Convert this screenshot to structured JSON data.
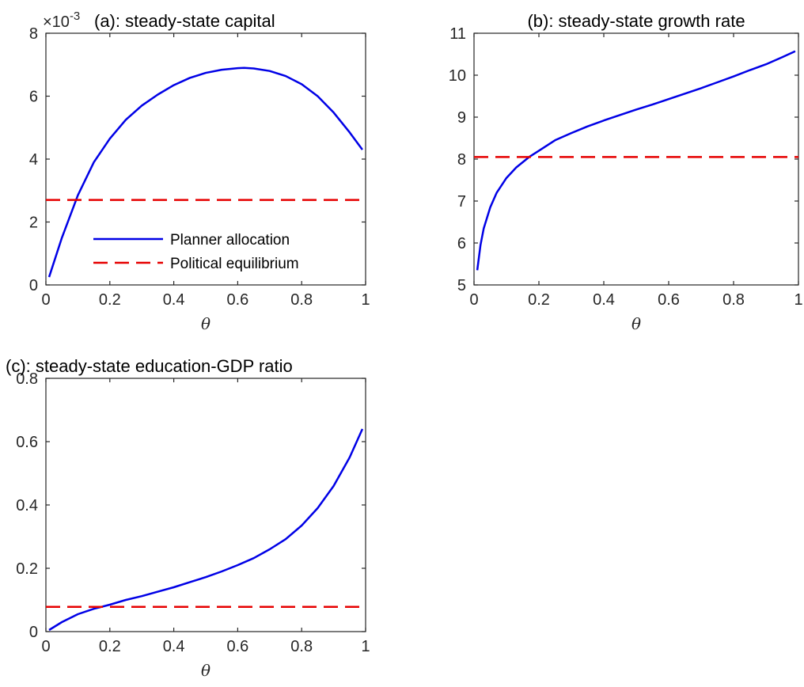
{
  "colors": {
    "planner": "#0000e6",
    "political": "#e60000",
    "axes": "#262626"
  },
  "legend": {
    "position": "bottom-right",
    "planner_label": "Planner allocation",
    "political_label": "Political equilibrium"
  },
  "chart_data": [
    {
      "type": "line",
      "title": "(a): steady-state capital",
      "xlabel": "θ",
      "ylabel": "",
      "xlim": [
        0,
        1
      ],
      "ylim": [
        0,
        8
      ],
      "xticks": [
        "0",
        "0.2",
        "0.4",
        "0.6",
        "0.8",
        "1"
      ],
      "yticks": [
        "0",
        "2",
        "4",
        "6",
        "8"
      ],
      "y_exponent_label": "×10",
      "y_exponent_power": "-3",
      "grid": false,
      "series": [
        {
          "name": "Planner allocation",
          "style": "solid",
          "x": [
            0.01,
            0.05,
            0.1,
            0.15,
            0.2,
            0.25,
            0.3,
            0.35,
            0.4,
            0.45,
            0.5,
            0.55,
            0.6,
            0.62,
            0.65,
            0.7,
            0.75,
            0.8,
            0.85,
            0.9,
            0.95,
            0.99
          ],
          "y": [
            0.25,
            1.5,
            2.85,
            3.9,
            4.65,
            5.25,
            5.7,
            6.05,
            6.35,
            6.58,
            6.74,
            6.84,
            6.89,
            6.9,
            6.88,
            6.8,
            6.64,
            6.38,
            6.0,
            5.48,
            4.85,
            4.3
          ]
        },
        {
          "name": "Political equilibrium",
          "style": "dashed",
          "x": [
            0,
            1
          ],
          "y": [
            2.7,
            2.7
          ]
        }
      ]
    },
    {
      "type": "line",
      "title": "(b): steady-state growth rate",
      "xlabel": "θ",
      "ylabel": "",
      "xlim": [
        0,
        1
      ],
      "ylim": [
        5,
        11
      ],
      "xticks": [
        "0",
        "0.2",
        "0.4",
        "0.6",
        "0.8",
        "1"
      ],
      "yticks": [
        "5",
        "6",
        "7",
        "8",
        "9",
        "10",
        "11"
      ],
      "grid": false,
      "series": [
        {
          "name": "Planner allocation",
          "style": "solid",
          "x": [
            0.01,
            0.02,
            0.03,
            0.05,
            0.07,
            0.1,
            0.13,
            0.17,
            0.2,
            0.25,
            0.3,
            0.35,
            0.4,
            0.45,
            0.5,
            0.55,
            0.6,
            0.65,
            0.7,
            0.75,
            0.8,
            0.85,
            0.9,
            0.95,
            0.99
          ],
          "y": [
            5.35,
            5.95,
            6.35,
            6.85,
            7.2,
            7.55,
            7.8,
            8.05,
            8.2,
            8.45,
            8.62,
            8.78,
            8.92,
            9.05,
            9.18,
            9.3,
            9.43,
            9.56,
            9.69,
            9.83,
            9.97,
            10.12,
            10.26,
            10.43,
            10.57
          ]
        },
        {
          "name": "Political equilibrium",
          "style": "dashed",
          "x": [
            0,
            1
          ],
          "y": [
            8.05,
            8.05
          ]
        }
      ]
    },
    {
      "type": "line",
      "title": "(c): steady-state education-GDP ratio",
      "xlabel": "θ",
      "ylabel": "",
      "xlim": [
        0,
        1
      ],
      "ylim": [
        0,
        0.8
      ],
      "xticks": [
        "0",
        "0.2",
        "0.4",
        "0.6",
        "0.8",
        "1"
      ],
      "yticks": [
        "0",
        "0.2",
        "0.4",
        "0.6",
        "0.8"
      ],
      "grid": false,
      "series": [
        {
          "name": "Planner allocation",
          "style": "solid",
          "x": [
            0.01,
            0.05,
            0.1,
            0.15,
            0.2,
            0.25,
            0.3,
            0.35,
            0.4,
            0.45,
            0.5,
            0.55,
            0.6,
            0.65,
            0.7,
            0.75,
            0.8,
            0.85,
            0.9,
            0.95,
            0.99
          ],
          "y": [
            0.005,
            0.03,
            0.055,
            0.072,
            0.085,
            0.1,
            0.112,
            0.126,
            0.14,
            0.156,
            0.172,
            0.19,
            0.21,
            0.232,
            0.26,
            0.292,
            0.335,
            0.39,
            0.46,
            0.55,
            0.64
          ]
        },
        {
          "name": "Political equilibrium",
          "style": "dashed",
          "x": [
            0,
            1
          ],
          "y": [
            0.078,
            0.078
          ]
        }
      ]
    }
  ]
}
